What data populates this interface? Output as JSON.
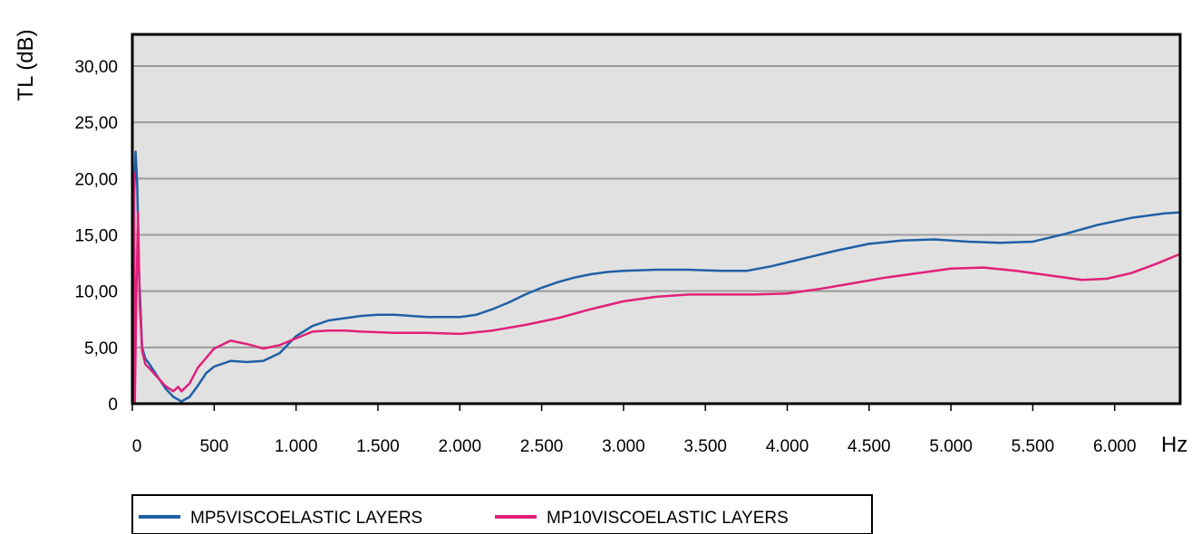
{
  "chart_data": {
    "type": "line",
    "title": "",
    "xlabel": "Hz",
    "ylabel": "TL (dB)",
    "xlim": [
      0,
      6400
    ],
    "ylim": [
      0,
      30
    ],
    "grid": true,
    "legend_position": "bottom-left",
    "plot_background": "#e1e1e1",
    "x_ticks": [
      {
        "value": 0,
        "label": "0"
      },
      {
        "value": 500,
        "label": "500"
      },
      {
        "value": 1000,
        "label": "1.000"
      },
      {
        "value": 1500,
        "label": "1.500"
      },
      {
        "value": 2000,
        "label": "2.000"
      },
      {
        "value": 2500,
        "label": "2.500"
      },
      {
        "value": 3000,
        "label": "3.000"
      },
      {
        "value": 3500,
        "label": "3.500"
      },
      {
        "value": 4000,
        "label": "4.000"
      },
      {
        "value": 4500,
        "label": "4.500"
      },
      {
        "value": 5000,
        "label": "5.000"
      },
      {
        "value": 5500,
        "label": "5.500"
      },
      {
        "value": 6000,
        "label": "6.000"
      }
    ],
    "y_ticks": [
      {
        "value": 0,
        "label": "0"
      },
      {
        "value": 5,
        "label": "5,00"
      },
      {
        "value": 10,
        "label": "10,00"
      },
      {
        "value": 15,
        "label": "15,00"
      },
      {
        "value": 20,
        "label": "20,00"
      },
      {
        "value": 25,
        "label": "25,00"
      },
      {
        "value": 30,
        "label": "30,00"
      }
    ],
    "series": [
      {
        "name": "MP5VISCOELASTIC LAYERS",
        "color": "#1f5fa6",
        "points": [
          [
            0,
            0
          ],
          [
            10,
            18
          ],
          [
            20,
            22.4
          ],
          [
            30,
            19.5
          ],
          [
            40,
            12
          ],
          [
            60,
            5
          ],
          [
            80,
            4
          ],
          [
            100,
            3.6
          ],
          [
            150,
            2.5
          ],
          [
            200,
            1.4
          ],
          [
            250,
            0.6
          ],
          [
            300,
            0.2
          ],
          [
            350,
            0.6
          ],
          [
            400,
            1.6
          ],
          [
            450,
            2.7
          ],
          [
            500,
            3.3
          ],
          [
            600,
            3.8
          ],
          [
            700,
            3.7
          ],
          [
            800,
            3.8
          ],
          [
            900,
            4.5
          ],
          [
            1000,
            6
          ],
          [
            1100,
            6.9
          ],
          [
            1200,
            7.4
          ],
          [
            1300,
            7.6
          ],
          [
            1400,
            7.8
          ],
          [
            1500,
            7.9
          ],
          [
            1600,
            7.9
          ],
          [
            1700,
            7.8
          ],
          [
            1800,
            7.7
          ],
          [
            1900,
            7.7
          ],
          [
            2000,
            7.7
          ],
          [
            2100,
            7.9
          ],
          [
            2200,
            8.4
          ],
          [
            2300,
            9
          ],
          [
            2400,
            9.7
          ],
          [
            2500,
            10.3
          ],
          [
            2600,
            10.8
          ],
          [
            2700,
            11.2
          ],
          [
            2800,
            11.5
          ],
          [
            2900,
            11.7
          ],
          [
            3000,
            11.8
          ],
          [
            3200,
            11.9
          ],
          [
            3400,
            11.9
          ],
          [
            3600,
            11.8
          ],
          [
            3750,
            11.8
          ],
          [
            3900,
            12.2
          ],
          [
            4100,
            12.9
          ],
          [
            4300,
            13.6
          ],
          [
            4500,
            14.2
          ],
          [
            4700,
            14.5
          ],
          [
            4900,
            14.6
          ],
          [
            5100,
            14.4
          ],
          [
            5300,
            14.3
          ],
          [
            5500,
            14.4
          ],
          [
            5700,
            15.1
          ],
          [
            5900,
            15.9
          ],
          [
            6100,
            16.5
          ],
          [
            6300,
            16.9
          ],
          [
            6400,
            17
          ]
        ]
      },
      {
        "name": "MP10VISCOELASTIC LAYERS",
        "color": "#e0207a",
        "points": [
          [
            0,
            0
          ],
          [
            5,
            13
          ],
          [
            10,
            20.5
          ],
          [
            15,
            0
          ],
          [
            25,
            10
          ],
          [
            35,
            17
          ],
          [
            45,
            9
          ],
          [
            60,
            4.7
          ],
          [
            80,
            3.5
          ],
          [
            100,
            3.2
          ],
          [
            150,
            2.4
          ],
          [
            200,
            1.6
          ],
          [
            250,
            1.1
          ],
          [
            280,
            1.5
          ],
          [
            300,
            1.1
          ],
          [
            350,
            1.8
          ],
          [
            400,
            3.2
          ],
          [
            500,
            4.9
          ],
          [
            600,
            5.6
          ],
          [
            700,
            5.3
          ],
          [
            800,
            4.9
          ],
          [
            900,
            5.2
          ],
          [
            1000,
            5.8
          ],
          [
            1100,
            6.4
          ],
          [
            1200,
            6.5
          ],
          [
            1300,
            6.5
          ],
          [
            1400,
            6.4
          ],
          [
            1600,
            6.3
          ],
          [
            1800,
            6.3
          ],
          [
            2000,
            6.2
          ],
          [
            2200,
            6.5
          ],
          [
            2400,
            7
          ],
          [
            2600,
            7.6
          ],
          [
            2800,
            8.4
          ],
          [
            3000,
            9.1
          ],
          [
            3200,
            9.5
          ],
          [
            3400,
            9.7
          ],
          [
            3600,
            9.7
          ],
          [
            3800,
            9.7
          ],
          [
            4000,
            9.8
          ],
          [
            4200,
            10.2
          ],
          [
            4400,
            10.7
          ],
          [
            4600,
            11.2
          ],
          [
            4800,
            11.6
          ],
          [
            5000,
            12
          ],
          [
            5200,
            12.1
          ],
          [
            5400,
            11.8
          ],
          [
            5600,
            11.4
          ],
          [
            5800,
            11
          ],
          [
            5950,
            11.1
          ],
          [
            6100,
            11.6
          ],
          [
            6250,
            12.4
          ],
          [
            6400,
            13.3
          ]
        ]
      }
    ]
  }
}
